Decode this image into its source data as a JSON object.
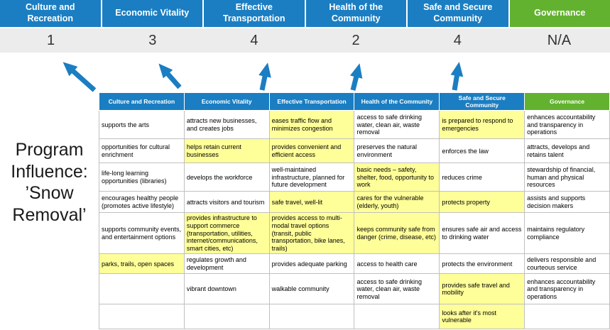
{
  "colors": {
    "blue": "#1b7ec2",
    "green": "#62b22f",
    "yellow": "#ffff99",
    "scoreband": "#ececec",
    "grid": "#c0c0c0",
    "text": "#1a1a1a"
  },
  "title": {
    "lines": [
      "Program",
      "Influence:",
      "’Snow",
      "Removal’"
    ]
  },
  "scoreboard": {
    "columns": [
      {
        "label": "Culture and Recreation",
        "score": "1"
      },
      {
        "label": "Economic Vitality",
        "score": "3"
      },
      {
        "label": "Effective Transportation",
        "score": "4"
      },
      {
        "label": "Health of the Community",
        "score": "2"
      },
      {
        "label": "Safe and Secure Community",
        "score": "4"
      },
      {
        "label": "Governance",
        "score": "N/A"
      }
    ]
  },
  "matrix": {
    "headers": [
      "Culture and Recreation",
      "Economic Vitality",
      "Effective Transportation",
      "Health of the Community",
      "Safe and Secure Community",
      "Governance"
    ],
    "rows": [
      [
        {
          "t": "supports the arts",
          "h": false
        },
        {
          "t": "attracts new businesses, and creates jobs",
          "h": false
        },
        {
          "t": "eases traffic flow and minimizes congestion",
          "h": true
        },
        {
          "t": "access to safe drinking water, clean air, waste removal",
          "h": false
        },
        {
          "t": "is prepared to respond to emergencies",
          "h": true
        },
        {
          "t": "enhances accountability and transparency in operations",
          "h": false
        }
      ],
      [
        {
          "t": "opportunities for cultural enrichment",
          "h": false
        },
        {
          "t": "helps retain current businesses",
          "h": true
        },
        {
          "t": "provides convenient and efficient access",
          "h": true
        },
        {
          "t": "preserves the natural environment",
          "h": false
        },
        {
          "t": "enforces the law",
          "h": false
        },
        {
          "t": "attracts, develops and retains talent",
          "h": false
        }
      ],
      [
        {
          "t": "life-long learning opportunities (libraries)",
          "h": false
        },
        {
          "t": "develops the workforce",
          "h": false
        },
        {
          "t": "well-maintained infrastructure, planned for future development",
          "h": false
        },
        {
          "t": "basic needs – safety, shelter, food, opportunity to work",
          "h": true
        },
        {
          "t": "reduces crime",
          "h": false
        },
        {
          "t": "stewardship of financial, human and physical resources",
          "h": false
        }
      ],
      [
        {
          "t": "encourages healthy people (promotes active lifestyle)",
          "h": false
        },
        {
          "t": "attracts visitors and tourism",
          "h": false
        },
        {
          "t": "safe travel, well-lit",
          "h": true
        },
        {
          "t": "cares for the vulnerable (elderly, youth)",
          "h": true
        },
        {
          "t": "protects property",
          "h": true
        },
        {
          "t": "assists and supports decision makers",
          "h": false
        }
      ],
      [
        {
          "t": "supports community events, and entertainment options",
          "h": false
        },
        {
          "t": "provides infrastructure to support commerce (transportation, utilities, internet/communications, smart cities, etc)",
          "h": true
        },
        {
          "t": "provides access to multi-modal travel options (transit, public transportation, bike lanes, trails)",
          "h": true
        },
        {
          "t": "keeps community safe from danger (crime, disease, etc)",
          "h": true
        },
        {
          "t": "ensures safe air and access to drinking water",
          "h": false
        },
        {
          "t": "maintains regulatory compliance",
          "h": false
        }
      ],
      [
        {
          "t": "parks, trails, open spaces",
          "h": true
        },
        {
          "t": "regulates growth and development",
          "h": false
        },
        {
          "t": "provides adequate parking",
          "h": false
        },
        {
          "t": "access to health care",
          "h": false
        },
        {
          "t": "protects the environment",
          "h": false
        },
        {
          "t": "delivers responsible and courteous service",
          "h": false
        }
      ],
      [
        {
          "t": "",
          "h": false
        },
        {
          "t": "vibrant downtown",
          "h": false
        },
        {
          "t": "walkable community",
          "h": false
        },
        {
          "t": "access to safe drinking water, clean air, waste removal",
          "h": false
        },
        {
          "t": "provides safe travel and mobility",
          "h": true
        },
        {
          "t": "enhances accountability and transparency in operations",
          "h": false
        }
      ],
      [
        {
          "t": "",
          "h": false
        },
        {
          "t": "",
          "h": false
        },
        {
          "t": "",
          "h": false
        },
        {
          "t": "",
          "h": false
        },
        {
          "t": "looks after it's most vulnerable",
          "h": true
        },
        {
          "t": "",
          "h": false
        }
      ]
    ]
  }
}
